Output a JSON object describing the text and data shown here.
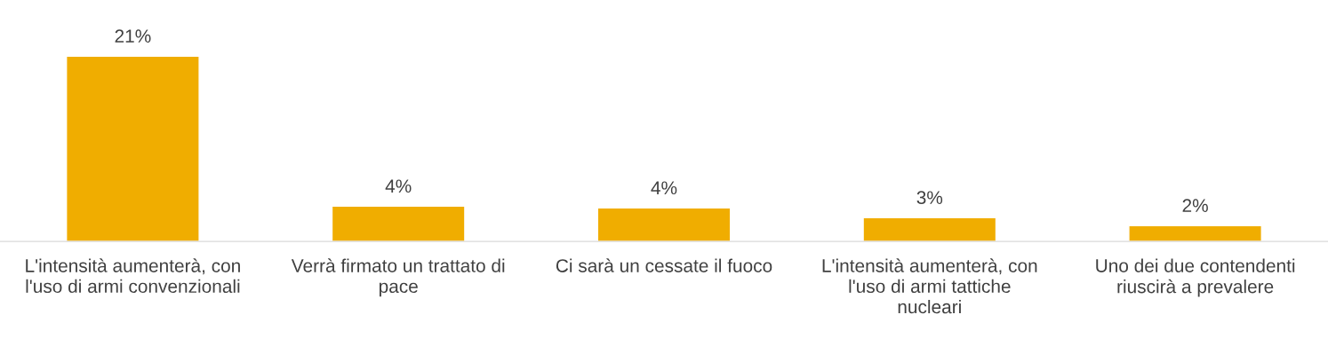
{
  "chart_data": {
    "type": "bar",
    "categories": [
      "L'intensità aumenterà, con l'uso di armi convenzionali",
      "Verrà firmato un trattato di pace",
      "Ci sarà un cessate il fuoco",
      "L'intensità aumenterà, con l'uso di armi tattiche nucleari",
      "Uno dei due contendenti riuscirà a prevalere"
    ],
    "values": [
      21,
      4.0,
      3.8,
      2.7,
      1.8
    ],
    "value_labels": [
      "21%",
      "4%",
      "4%",
      "3%",
      "2%"
    ],
    "color": "#f0ad00",
    "grid": false,
    "legend": false
  }
}
